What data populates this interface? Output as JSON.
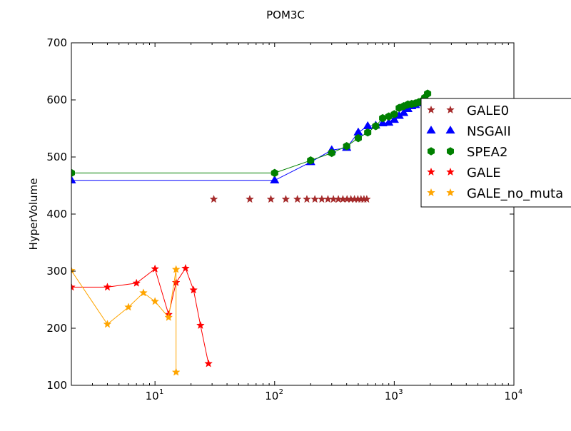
{
  "chart_data": {
    "type": "line",
    "title": "POM3C",
    "ylabel": "HyperVolume",
    "xlabel": "",
    "xscale": "log",
    "xlim": [
      2,
      10000
    ],
    "ylim": [
      100,
      700
    ],
    "y_ticks": [
      "100",
      "200",
      "300",
      "400",
      "500",
      "600",
      "700"
    ],
    "x_ticks": [
      {
        "value": 10,
        "label": "10",
        "exp": "1"
      },
      {
        "value": 100,
        "label": "10",
        "exp": "2"
      },
      {
        "value": 1000,
        "label": "10",
        "exp": "3"
      },
      {
        "value": 10000,
        "label": "10",
        "exp": "4"
      }
    ],
    "grid": false,
    "legend_position": "right, partially clipped by the figure edge",
    "series": [
      {
        "name": "GALE0",
        "color": "#a52a2a",
        "marker": "star",
        "line": false,
        "x": [
          31,
          62,
          93,
          124,
          155,
          186,
          217,
          248,
          279,
          310,
          341,
          372,
          403,
          434,
          465,
          496,
          527,
          558,
          589
        ],
        "y": [
          426,
          426,
          426,
          426,
          426,
          426,
          426,
          426,
          426,
          426,
          426,
          426,
          426,
          426,
          426,
          426,
          426,
          426,
          426
        ]
      },
      {
        "name": "NSGAII",
        "color": "#0000ff",
        "marker": "triangle",
        "line": true,
        "x": [
          2,
          100,
          200,
          300,
          400,
          500,
          600,
          700,
          800,
          900,
          1000,
          1100,
          1200,
          1300,
          1400,
          1500,
          1600,
          1700
        ],
        "y": [
          459,
          459,
          491,
          512,
          516,
          543,
          554,
          555,
          559,
          560,
          565,
          572,
          577,
          584,
          589,
          591,
          594,
          596
        ]
      },
      {
        "name": "SPEA2",
        "color": "#008000",
        "marker": "hexagon",
        "line": true,
        "x": [
          2,
          100,
          200,
          300,
          400,
          500,
          600,
          700,
          800,
          900,
          1000,
          1100,
          1200,
          1300,
          1400,
          1500,
          1600,
          1700,
          1800,
          1900
        ],
        "y": [
          472,
          472,
          494,
          507,
          519,
          533,
          543,
          554,
          568,
          571,
          575,
          586,
          589,
          592,
          593,
          594,
          596,
          598,
          604,
          611
        ]
      },
      {
        "name": "GALE",
        "color": "#ff0000",
        "marker": "star",
        "line": true,
        "x": [
          2,
          4,
          7,
          10,
          13,
          15,
          18,
          21,
          24,
          28
        ],
        "y": [
          272,
          272,
          279,
          304,
          224,
          280,
          305,
          267,
          205,
          138
        ]
      },
      {
        "name": "GALE_no_muta",
        "color": "#ffa500",
        "marker": "star",
        "line": true,
        "x": [
          2,
          4,
          6,
          8,
          10,
          13,
          15,
          15
        ],
        "y": [
          301,
          207,
          237,
          262,
          247,
          219,
          303,
          123
        ]
      }
    ]
  }
}
